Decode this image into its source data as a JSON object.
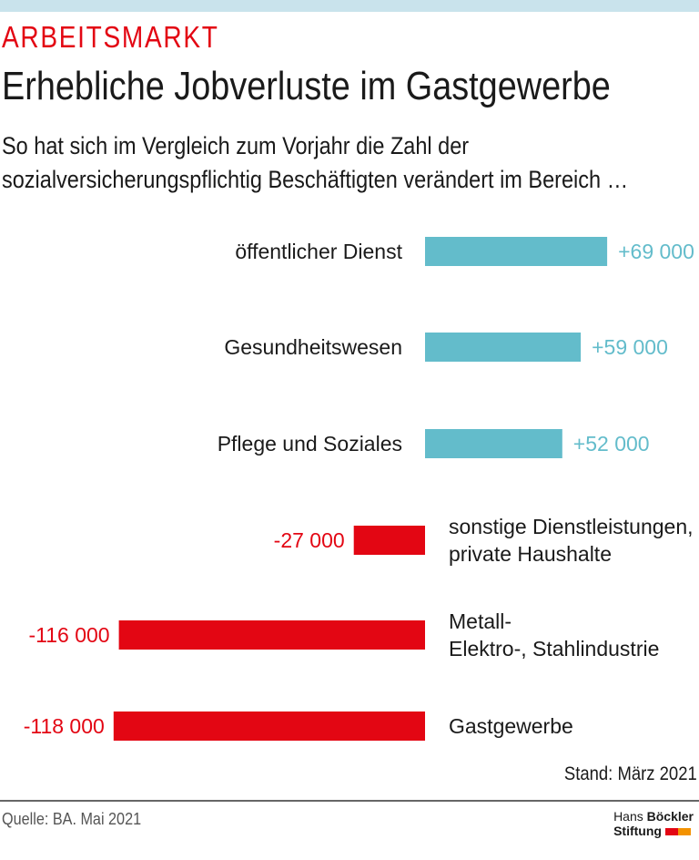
{
  "kicker": "ARBEITSMARKT",
  "title": "Erhebliche Jobverluste im Gastgewerbe",
  "subtitle": "So hat sich im Vergleich zum Vorjahr die Zahl der sozialversicherungspflichtig Beschäftigten verändert im Bereich …",
  "stand": "Stand: März 2021",
  "source": "Quelle: BA. Mai 2021",
  "logo": {
    "line1a": "Hans",
    "line1b": "Böckler",
    "line2": "Stiftung"
  },
  "colors": {
    "positive": "#63bccb",
    "negative": "#e30613",
    "logo_red": "#e30613",
    "logo_orange": "#f39200"
  },
  "chart_data": {
    "type": "bar",
    "orientation": "horizontal",
    "categories": [
      "öffentlicher Dienst",
      "Gesundheitswesen",
      "Pflege und Soziales",
      "sonstige Dienstleistungen, private Haushalte",
      "Metall-, Elektro-, Stahlindustrie",
      "Gastgewerbe"
    ],
    "values": [
      69000,
      59000,
      52000,
      -27000,
      -116000,
      -118000
    ],
    "labels": [
      "+69 000",
      "+59 000",
      "+52 000",
      "-27 000",
      "-116 000",
      "-118 000"
    ]
  }
}
